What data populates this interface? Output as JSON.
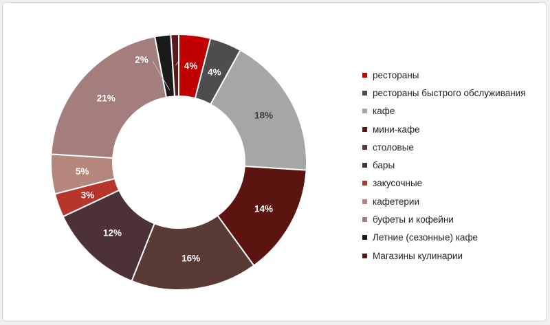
{
  "chart_data": {
    "type": "pie",
    "variant": "donut",
    "categories": [
      "рестораны",
      "рестораны быстрого обслуживания",
      "кафе",
      "мини-кафе",
      "столовые",
      "бары",
      "закусочные",
      "кафетерии",
      "буфеты и кофейни",
      "Летние (сезонные) кафе",
      "Магазины кулинарии"
    ],
    "values": [
      4,
      4,
      18,
      14,
      16,
      12,
      3,
      5,
      21,
      2,
      1
    ],
    "labels": [
      "4%",
      "4%",
      "18%",
      "14%",
      "16%",
      "12%",
      "3%",
      "5%",
      "21%",
      "2%",
      "1%"
    ],
    "colors": [
      "#c00000",
      "#4d4d4d",
      "#a6a6a6",
      "#5c1410",
      "#5a3a35",
      "#4a3235",
      "#b8352b",
      "#b5877c",
      "#a47d7d",
      "#1a1a1a",
      "#5a1a1a"
    ],
    "legend_position": "right"
  }
}
